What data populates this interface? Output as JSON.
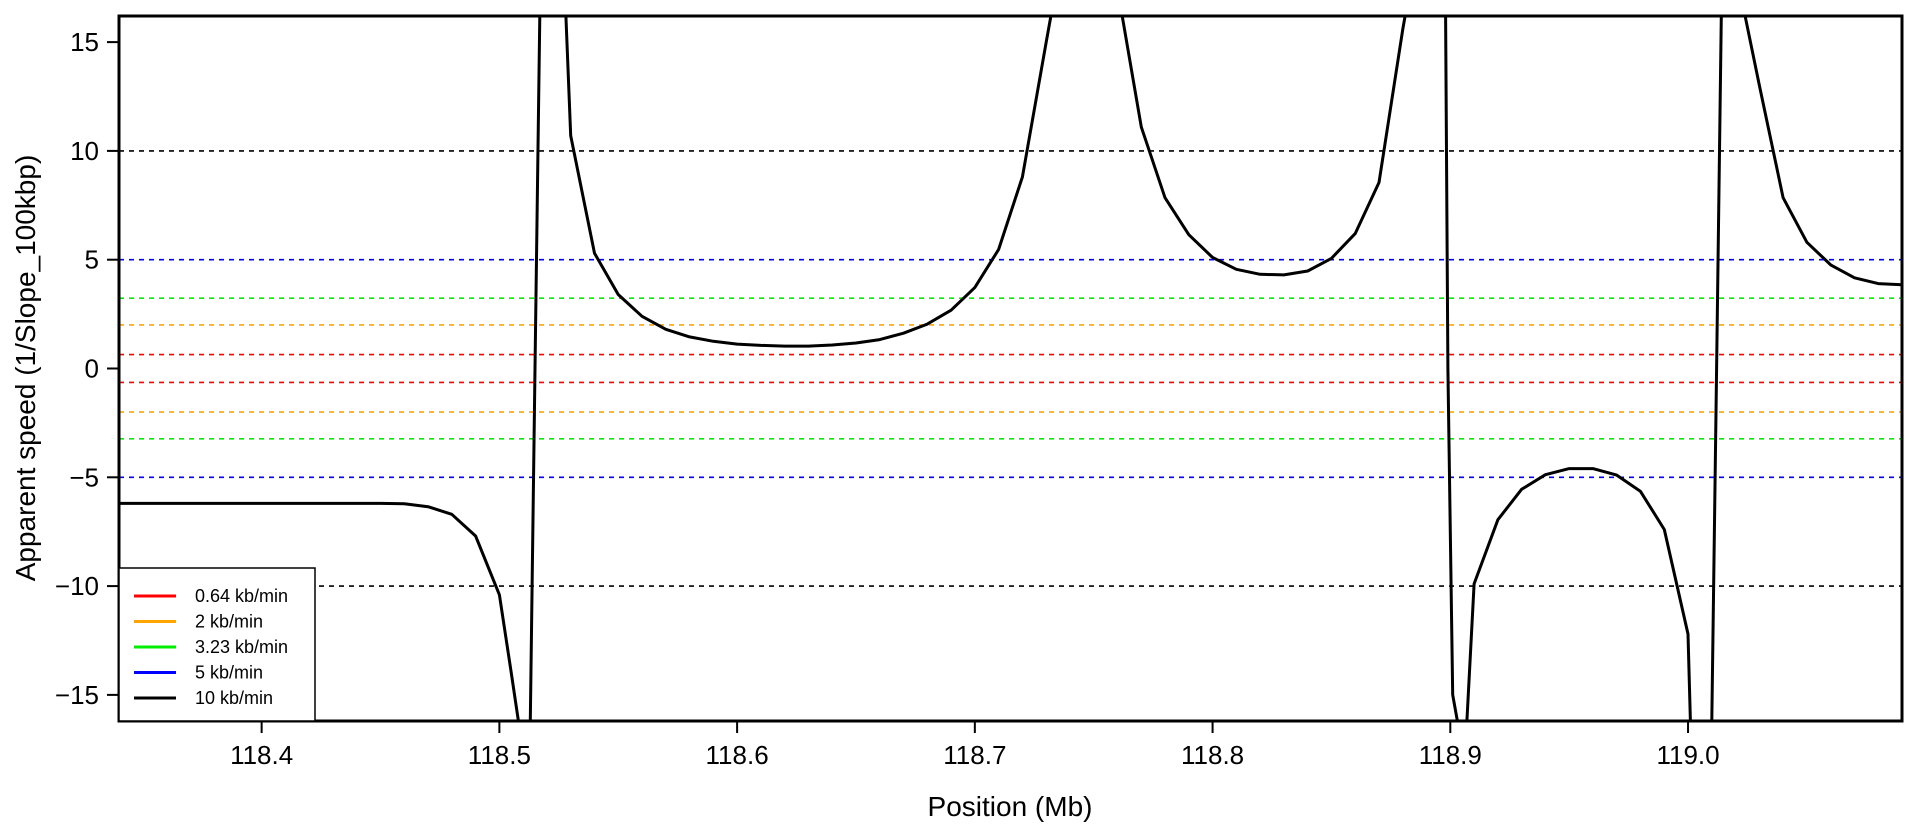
{
  "chart_data": {
    "type": "line",
    "title": "",
    "xlabel": "Position (Mb)",
    "ylabel": "Apparent speed (1/Slope_100kbp)",
    "xlim": [
      118.34,
      119.09
    ],
    "ylim": [
      -16.2,
      16.2
    ],
    "x_ticks": [
      118.4,
      118.5,
      118.6,
      118.7,
      118.8,
      118.9,
      119.0
    ],
    "x_tick_labels": [
      "118.4",
      "118.5",
      "118.6",
      "118.7",
      "118.8",
      "118.9",
      "119.0"
    ],
    "y_ticks": [
      -15,
      -10,
      -5,
      0,
      5,
      10,
      15
    ],
    "y_tick_labels": [
      "−15",
      "−10",
      "−5",
      "0",
      "5",
      "10",
      "15"
    ],
    "grid": false,
    "reference_lines": [
      {
        "speed": "0.64 kb/min",
        "y": 0.64,
        "color": "#ff0000"
      },
      {
        "speed": "0.64 kb/min",
        "y": -0.64,
        "color": "#ff0000"
      },
      {
        "speed": "2 kb/min",
        "y": 2.0,
        "color": "#ffa500"
      },
      {
        "speed": "2 kb/min",
        "y": -2.0,
        "color": "#ffa500"
      },
      {
        "speed": "3.23 kb/min",
        "y": 3.23,
        "color": "#00ee00"
      },
      {
        "speed": "3.23 kb/min",
        "y": -3.23,
        "color": "#00ee00"
      },
      {
        "speed": "5 kb/min",
        "y": 5.0,
        "color": "#0000ff"
      },
      {
        "speed": "5 kb/min",
        "y": -5.0,
        "color": "#0000ff"
      },
      {
        "speed": "10 kb/min",
        "y": 10.0,
        "color": "#000000"
      },
      {
        "speed": "10 kb/min",
        "y": -10.0,
        "color": "#000000"
      }
    ],
    "legend": {
      "placement": "bottom-left",
      "entries": [
        {
          "label": "0.64 kb/min",
          "color": "#ff0000"
        },
        {
          "label": "2 kb/min",
          "color": "#ffa500"
        },
        {
          "label": "3.23 kb/min",
          "color": "#00ee00"
        },
        {
          "label": "5 kb/min",
          "color": "#0000ff"
        },
        {
          "label": "10 kb/min",
          "color": "#000000"
        }
      ]
    },
    "series": [
      {
        "color": "#000000",
        "x": [
          118.34,
          118.45,
          118.46,
          118.47,
          118.48,
          118.49,
          118.5,
          118.505,
          118.508
        ],
        "y": [
          -6.2,
          -6.2,
          -6.22,
          -6.35,
          -6.7,
          -7.7,
          -10.4,
          -14.0,
          -16.2
        ]
      },
      {
        "color": "#000000",
        "x": [
          118.513,
          118.515,
          118.517
        ],
        "y": [
          -16.2,
          0.0,
          16.2
        ]
      },
      {
        "color": "#000000",
        "x": [
          118.528,
          118.53,
          118.54,
          118.55,
          118.56,
          118.57,
          118.58,
          118.59,
          118.6,
          118.61,
          118.62,
          118.63,
          118.64,
          118.65,
          118.66,
          118.67,
          118.68,
          118.69,
          118.7,
          118.71,
          118.72,
          118.73,
          118.732
        ],
        "y": [
          16.2,
          10.7,
          5.3,
          3.4,
          2.4,
          1.8,
          1.45,
          1.25,
          1.12,
          1.06,
          1.03,
          1.03,
          1.08,
          1.17,
          1.33,
          1.62,
          2.04,
          2.68,
          3.72,
          5.47,
          8.8,
          15.0,
          16.2
        ]
      },
      {
        "color": "#000000",
        "x": [
          118.762,
          118.77,
          118.78,
          118.79,
          118.8,
          118.81,
          118.82,
          118.83,
          118.84,
          118.85,
          118.86,
          118.87,
          118.88,
          118.881
        ],
        "y": [
          16.2,
          11.1,
          7.85,
          6.15,
          5.1,
          4.56,
          4.33,
          4.3,
          4.48,
          5.06,
          6.2,
          8.55,
          15.6,
          16.2
        ]
      },
      {
        "color": "#000000",
        "x": [
          118.898,
          118.899,
          118.901,
          118.903
        ],
        "y": [
          16.2,
          0.0,
          -15.0,
          -16.2
        ]
      },
      {
        "color": "#000000",
        "x": [
          118.907,
          118.91,
          118.92,
          118.93,
          118.94,
          118.95,
          118.96,
          118.97,
          118.98,
          118.99,
          119.0,
          119.001
        ],
        "y": [
          -16.2,
          -9.9,
          -6.95,
          -5.55,
          -4.88,
          -4.6,
          -4.6,
          -4.9,
          -5.65,
          -7.4,
          -12.2,
          -16.2
        ]
      },
      {
        "color": "#000000",
        "x": [
          119.01,
          119.012,
          119.014
        ],
        "y": [
          -16.2,
          0.0,
          16.2
        ]
      },
      {
        "color": "#000000",
        "x": [
          119.024,
          119.03,
          119.04,
          119.05,
          119.06,
          119.07,
          119.08,
          119.09
        ],
        "y": [
          16.2,
          13.0,
          7.85,
          5.8,
          4.76,
          4.17,
          3.9,
          3.85
        ]
      }
    ]
  }
}
